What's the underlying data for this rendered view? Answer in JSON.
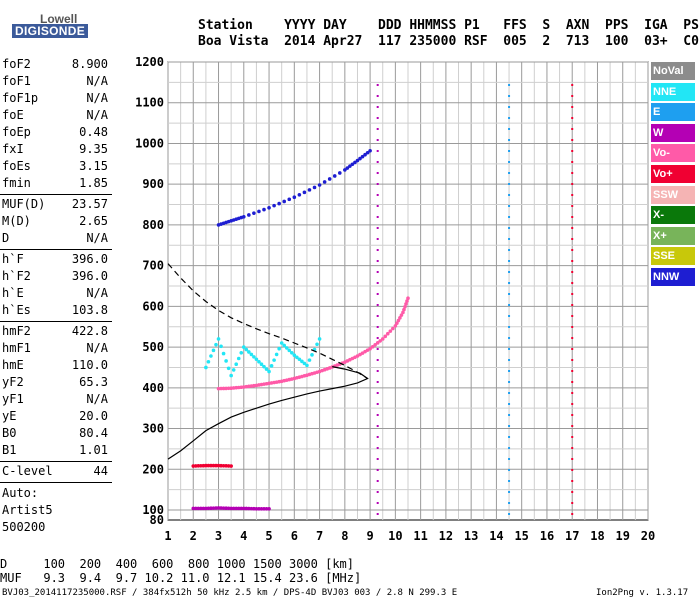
{
  "logo": {
    "line1": "Lowell",
    "line2": "DIGISONDE"
  },
  "header": {
    "line1": "Station    YYYY DAY    DDD HHMMSS P1   FFS  S  AXN  PPS  IGA  PS",
    "line2": "Boa Vista  2014 Apr27  117 235000 RSF  005  2  713  100  03+  C0"
  },
  "parameters": [
    {
      "name": "foF2",
      "value": "8.900"
    },
    {
      "name": "foF1",
      "value": "N/A"
    },
    {
      "name": "foF1p",
      "value": "N/A"
    },
    {
      "name": "foE",
      "value": "N/A"
    },
    {
      "name": "foEp",
      "value": "0.48"
    },
    {
      "name": "fxI",
      "value": "9.35"
    },
    {
      "name": "foEs",
      "value": "3.15"
    },
    {
      "name": "fmin",
      "value": "1.85"
    },
    {
      "name": "MUF(D)",
      "value": "23.57"
    },
    {
      "name": "M(D)",
      "value": "2.65"
    },
    {
      "name": "D",
      "value": "N/A"
    },
    {
      "name": "h`F",
      "value": "396.0"
    },
    {
      "name": "h`F2",
      "value": "396.0"
    },
    {
      "name": "h`E",
      "value": "N/A"
    },
    {
      "name": "h`Es",
      "value": "103.8"
    },
    {
      "name": "hmF2",
      "value": "422.8"
    },
    {
      "name": "hmF1",
      "value": "N/A"
    },
    {
      "name": "hmE",
      "value": "110.0"
    },
    {
      "name": "yF2",
      "value": "65.3"
    },
    {
      "name": "yF1",
      "value": "N/A"
    },
    {
      "name": "yE",
      "value": "20.0"
    },
    {
      "name": "B0",
      "value": "80.4"
    },
    {
      "name": "B1",
      "value": "1.01"
    },
    {
      "name": "C-level",
      "value": "44"
    }
  ],
  "auto": [
    "Auto:",
    "Artist5",
    "500200"
  ],
  "legend": [
    {
      "label": "NoVal",
      "color": "#8c8c8c"
    },
    {
      "label": "NNE",
      "color": "#22e6f5"
    },
    {
      "label": "E",
      "color": "#1e9ff0"
    },
    {
      "label": "W",
      "color": "#b400b4"
    },
    {
      "label": "Vo-",
      "color": "#ff5aa8"
    },
    {
      "label": "Vo+",
      "color": "#f00032"
    },
    {
      "label": "SSW",
      "color": "#f5b4b4"
    },
    {
      "label": "X-",
      "color": "#0a780a"
    },
    {
      "label": "X+",
      "color": "#78b45a"
    },
    {
      "label": "SSE",
      "color": "#c8c80a"
    },
    {
      "label": "NNW",
      "color": "#1e1ed2"
    }
  ],
  "mufTable": {
    "line1": "D     100  200  400  600  800 1000 1500 3000 [km]",
    "line2": "MUF   9.3  9.4  9.7 10.2 11.0 12.1 15.4 23.6 [MHz]"
  },
  "footer": {
    "left": "BVJ03_2014117235000.RSF / 384fx512h 50 kHz 2.5 km / DPS-4D BVJ03 003 / 2.8 N 299.3 E",
    "right": "Ion2Png v. 1.3.17"
  },
  "chart_data": {
    "type": "scatter",
    "xlabel": "",
    "ylabel": "",
    "xlim": [
      1,
      20
    ],
    "ylim": [
      80,
      1200
    ],
    "xticks": [
      1,
      2,
      3,
      4,
      5,
      6,
      7,
      8,
      9,
      10,
      11,
      12,
      13,
      14,
      15,
      16,
      17,
      18,
      19,
      20
    ],
    "yticks": [
      80,
      100,
      200,
      300,
      400,
      500,
      600,
      700,
      800,
      900,
      1000,
      1100,
      1200
    ],
    "grid": true,
    "legend_position": "right",
    "traces": [
      {
        "name": "F2 O-trace",
        "color": "#ff5aa8",
        "points": [
          [
            3.0,
            398
          ],
          [
            3.5,
            399
          ],
          [
            4.0,
            402
          ],
          [
            4.5,
            406
          ],
          [
            5.0,
            411
          ],
          [
            5.5,
            416
          ],
          [
            6.0,
            423
          ],
          [
            6.5,
            431
          ],
          [
            7.0,
            440
          ],
          [
            7.5,
            451
          ],
          [
            8.0,
            463
          ],
          [
            8.5,
            478
          ],
          [
            9.0,
            496
          ],
          [
            9.5,
            520
          ],
          [
            10.0,
            552
          ],
          [
            10.3,
            585
          ],
          [
            10.5,
            620
          ]
        ]
      },
      {
        "name": "F2 O-trace 2nd hop",
        "color": "#1e1ed2",
        "points": [
          [
            3.0,
            800
          ],
          [
            3.5,
            810
          ],
          [
            4.0,
            820
          ],
          [
            5.0,
            842
          ],
          [
            6.0,
            868
          ],
          [
            7.0,
            898
          ],
          [
            8.0,
            935
          ],
          [
            8.5,
            958
          ],
          [
            9.0,
            982
          ]
        ]
      },
      {
        "name": "Es layer",
        "color": "#b400b4",
        "points": [
          [
            2.0,
            104
          ],
          [
            2.5,
            104
          ],
          [
            3.0,
            105
          ],
          [
            3.5,
            104
          ],
          [
            4.0,
            104
          ],
          [
            4.5,
            103
          ],
          [
            5.0,
            103
          ]
        ]
      },
      {
        "name": "Es 2nd hop",
        "color": "#f00032",
        "points": [
          [
            2.0,
            208
          ],
          [
            2.5,
            209
          ],
          [
            3.0,
            209
          ],
          [
            3.5,
            208
          ]
        ]
      },
      {
        "name": "spread F",
        "color": "#22e6f5",
        "points": [
          [
            2.5,
            450
          ],
          [
            3.0,
            520
          ],
          [
            3.5,
            430
          ],
          [
            4.0,
            500
          ],
          [
            4.5,
            470
          ],
          [
            5.0,
            440
          ],
          [
            5.5,
            510
          ],
          [
            6.0,
            480
          ],
          [
            6.5,
            455
          ],
          [
            7.0,
            520
          ]
        ]
      }
    ],
    "profile": {
      "name": "electron density profile",
      "color": "#000",
      "points": [
        [
          1.0,
          225
        ],
        [
          1.5,
          245
        ],
        [
          2.0,
          270
        ],
        [
          2.5,
          295
        ],
        [
          3.0,
          312
        ],
        [
          3.5,
          328
        ],
        [
          4.0,
          340
        ],
        [
          4.5,
          350
        ],
        [
          5.0,
          360
        ],
        [
          5.5,
          369
        ],
        [
          6.0,
          377
        ],
        [
          6.5,
          385
        ],
        [
          7.0,
          392
        ],
        [
          7.5,
          398
        ],
        [
          8.0,
          404
        ],
        [
          8.5,
          412
        ],
        [
          8.9,
          423
        ],
        [
          8.6,
          436
        ],
        [
          8.0,
          446
        ],
        [
          7.5,
          452
        ]
      ]
    },
    "topside": {
      "name": "topside extrapolation",
      "color": "#000",
      "dash": true,
      "points": [
        [
          1.0,
          705
        ],
        [
          1.5,
          670
        ],
        [
          2.0,
          638
        ],
        [
          2.5,
          612
        ],
        [
          3.0,
          590
        ],
        [
          3.5,
          572
        ],
        [
          4.0,
          558
        ],
        [
          4.5,
          545
        ],
        [
          5.0,
          533
        ],
        [
          5.5,
          522
        ],
        [
          6.0,
          510
        ],
        [
          6.5,
          498
        ],
        [
          7.0,
          485
        ],
        [
          7.5,
          470
        ],
        [
          8.0,
          455
        ],
        [
          8.5,
          438
        ],
        [
          8.9,
          423
        ]
      ]
    },
    "vertical_bands": [
      {
        "x": 9.3,
        "color": "#b400b4"
      },
      {
        "x": 14.5,
        "color": "#1e9ff0"
      },
      {
        "x": 17.0,
        "color": "#f00032"
      }
    ]
  }
}
